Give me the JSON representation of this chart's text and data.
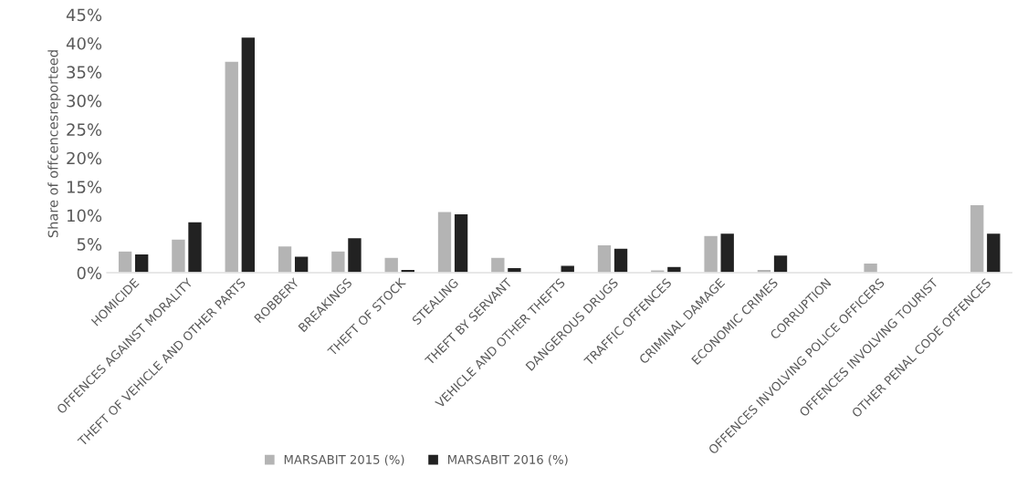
{
  "chart_data": {
    "type": "bar",
    "ylabel": "Share of offcencesreporteed",
    "categories": [
      "HOMICIDE",
      "OFFENCES AGAINST MORALITY",
      "THEFT OF VEHICLE AND OTHER PARTS",
      "ROBBERY",
      "BREAKINGS",
      "THEFT OF STOCK",
      "STEALING",
      "THEFT BY SERVANT",
      "VEHICLE AND OTHER THEFTS",
      "DANGEROUS DRUGS",
      "TRAFFIC OFFENCES",
      "CRIMINAL DAMAGE",
      "ECONOMIC CRIMES",
      "CORRUPTION",
      "OFFENCES INVOLVING POLICE OFFICERS",
      "OFFENCES INVOLVING TOURIST",
      "OTHER PENAL CODE OFFENCES"
    ],
    "series": [
      {
        "name": "MARSABIT 2015 (%)",
        "color": "#b4b4b4",
        "values": [
          3.8,
          5.9,
          36.9,
          4.7,
          3.8,
          2.7,
          10.7,
          2.7,
          null,
          4.9,
          0.5,
          6.5,
          0.6,
          null,
          1.7,
          null,
          11.9
        ]
      },
      {
        "name": "MARSABIT 2016 (%)",
        "color": "#222222",
        "values": [
          3.3,
          8.9,
          41.1,
          2.9,
          6.1,
          0.6,
          10.3,
          0.9,
          1.3,
          4.3,
          1.1,
          6.9,
          3.1,
          null,
          null,
          null,
          6.9
        ]
      }
    ],
    "ylim": [
      0,
      45
    ],
    "yticks": [
      {
        "value": 0,
        "label": "0%"
      },
      {
        "value": 5,
        "label": "5%"
      },
      {
        "value": 10,
        "label": "10%"
      },
      {
        "value": 15,
        "label": "15%"
      },
      {
        "value": 20,
        "label": "20%"
      },
      {
        "value": 25,
        "label": "25%"
      },
      {
        "value": 30,
        "label": "30%"
      },
      {
        "value": 35,
        "label": "35%"
      },
      {
        "value": 40,
        "label": "40%"
      },
      {
        "value": 45,
        "label": "45%"
      }
    ],
    "grid": false,
    "legend": "bottom"
  }
}
